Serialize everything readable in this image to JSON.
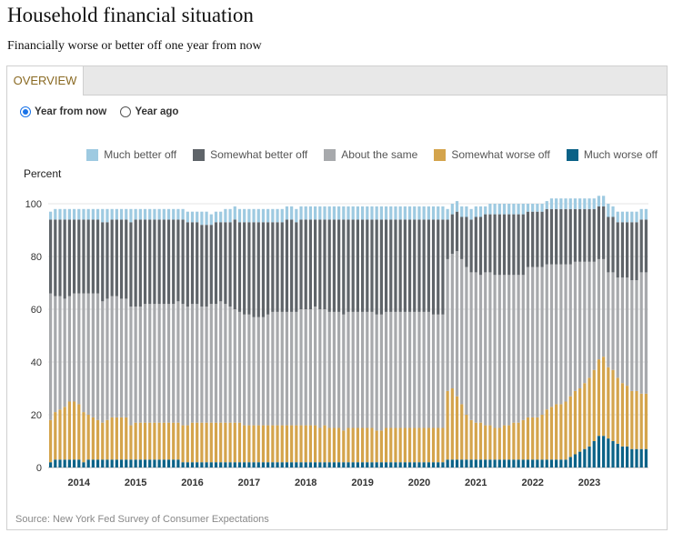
{
  "title": "Household financial situation",
  "subtitle": "Financially worse or better off one year from now",
  "tabs": [
    {
      "label": "OVERVIEW"
    }
  ],
  "radio": {
    "options": [
      {
        "label": "Year from now",
        "checked": true
      },
      {
        "label": "Year ago",
        "checked": false
      }
    ]
  },
  "source": "Source: New York Fed Survey of Consumer Expectations",
  "chart_data": {
    "type": "bar",
    "stacked": true,
    "ylabel": "Percent",
    "ylim": [
      0,
      100
    ],
    "yticks": [
      0,
      20,
      40,
      60,
      80,
      100
    ],
    "xticks": [
      "2014",
      "2015",
      "2016",
      "2017",
      "2018",
      "2019",
      "2020",
      "2021",
      "2022",
      "2023"
    ],
    "grid": true,
    "legend_position": "top-right",
    "series": [
      {
        "name": "Much better off",
        "color": "#9ecae1",
        "values": [
          3,
          4,
          4,
          4,
          4,
          4,
          4,
          4,
          4,
          4,
          4,
          5,
          5,
          4,
          4,
          4,
          4,
          5,
          4,
          4,
          4,
          4,
          4,
          4,
          4,
          4,
          4,
          4,
          4,
          4,
          4,
          4,
          5,
          5,
          4,
          4,
          4,
          5,
          5,
          5,
          5,
          5,
          5,
          5,
          5,
          5,
          5,
          5,
          5,
          5,
          5,
          5,
          5,
          5,
          5,
          5,
          5,
          5,
          5,
          5,
          5,
          5,
          5,
          5,
          5,
          5,
          5,
          5,
          5,
          5,
          5,
          5,
          5,
          5,
          5,
          5,
          5,
          5,
          5,
          5,
          5,
          5,
          5,
          5,
          4,
          4,
          4,
          4,
          4,
          4,
          4,
          4,
          3,
          4,
          4,
          4,
          4,
          4,
          4,
          4,
          4,
          3,
          3,
          3,
          3,
          3,
          4,
          4,
          4,
          4,
          4,
          4,
          4,
          4,
          4,
          4,
          4,
          4,
          5,
          4,
          4,
          4,
          4,
          4,
          4,
          4,
          4
        ]
      },
      {
        "name": "Somewhat better off",
        "color": "#5f6469",
        "values": [
          28,
          29,
          29,
          30,
          29,
          28,
          28,
          28,
          28,
          28,
          28,
          30,
          29,
          29,
          29,
          30,
          30,
          32,
          33,
          33,
          32,
          32,
          32,
          32,
          32,
          32,
          32,
          31,
          32,
          32,
          31,
          31,
          31,
          31,
          30,
          31,
          30,
          31,
          32,
          34,
          34,
          35,
          35,
          36,
          36,
          36,
          35,
          34,
          34,
          34,
          35,
          35,
          34,
          34,
          34,
          34,
          33,
          34,
          34,
          35,
          35,
          35,
          36,
          35,
          35,
          35,
          35,
          35,
          35,
          36,
          36,
          35,
          35,
          35,
          35,
          35,
          35,
          35,
          35,
          35,
          35,
          36,
          36,
          36,
          15,
          15,
          15,
          16,
          19,
          20,
          21,
          22,
          22,
          22,
          23,
          23,
          23,
          23,
          23,
          23,
          23,
          21,
          21,
          21,
          21,
          21,
          21,
          21,
          21,
          21,
          21,
          20,
          20,
          20,
          20,
          20,
          20,
          20,
          21,
          21,
          21,
          21,
          21,
          22,
          22,
          20,
          20
        ]
      },
      {
        "name": "About the same",
        "color": "#a7a9ac",
        "values": [
          48,
          44,
          43,
          41,
          40,
          41,
          42,
          45,
          46,
          47,
          48,
          46,
          46,
          46,
          46,
          45,
          45,
          45,
          44,
          44,
          45,
          45,
          45,
          45,
          45,
          45,
          45,
          46,
          46,
          45,
          45,
          45,
          44,
          44,
          45,
          45,
          46,
          45,
          44,
          43,
          42,
          42,
          42,
          41,
          41,
          41,
          42,
          43,
          43,
          43,
          43,
          43,
          43,
          44,
          44,
          44,
          45,
          45,
          44,
          44,
          44,
          44,
          44,
          44,
          44,
          44,
          44,
          44,
          44,
          44,
          44,
          44,
          44,
          44,
          44,
          44,
          44,
          44,
          44,
          44,
          44,
          43,
          43,
          43,
          50,
          51,
          55,
          55,
          56,
          56,
          57,
          56,
          58,
          58,
          58,
          58,
          57,
          57,
          56,
          56,
          55,
          57,
          57,
          57,
          56,
          55,
          54,
          53,
          53,
          52,
          50,
          49,
          48,
          46,
          44,
          41,
          38,
          37,
          36,
          37,
          38,
          40,
          41,
          42,
          42,
          46,
          46
        ]
      },
      {
        "name": "Somewhat worse off",
        "color": "#d4a44c",
        "values": [
          16,
          18,
          19,
          20,
          22,
          22,
          21,
          19,
          17,
          16,
          15,
          14,
          15,
          16,
          16,
          16,
          16,
          13,
          14,
          14,
          14,
          14,
          14,
          14,
          14,
          14,
          14,
          14,
          14,
          14,
          15,
          15,
          15,
          15,
          15,
          15,
          15,
          15,
          15,
          15,
          15,
          14,
          14,
          14,
          14,
          14,
          14,
          14,
          14,
          14,
          14,
          14,
          14,
          14,
          14,
          14,
          14,
          13,
          14,
          13,
          13,
          13,
          12,
          13,
          13,
          13,
          13,
          13,
          13,
          12,
          12,
          13,
          13,
          13,
          13,
          13,
          13,
          13,
          13,
          13,
          13,
          13,
          13,
          13,
          26,
          27,
          24,
          21,
          17,
          15,
          14,
          14,
          13,
          13,
          12,
          12,
          13,
          13,
          14,
          14,
          15,
          16,
          16,
          16,
          17,
          19,
          20,
          21,
          21,
          22,
          23,
          24,
          24,
          25,
          26,
          27,
          29,
          30,
          27,
          27,
          25,
          24,
          23,
          22,
          22,
          21,
          21
        ]
      },
      {
        "name": "Much worse off",
        "color": "#0b6287",
        "values": [
          2,
          3,
          3,
          3,
          3,
          3,
          3,
          2,
          3,
          3,
          3,
          3,
          3,
          3,
          3,
          3,
          3,
          3,
          3,
          3,
          3,
          3,
          3,
          3,
          3,
          3,
          3,
          3,
          2,
          2,
          2,
          2,
          2,
          2,
          2,
          2,
          2,
          2,
          2,
          2,
          2,
          2,
          2,
          2,
          2,
          2,
          2,
          2,
          2,
          2,
          2,
          2,
          2,
          2,
          2,
          2,
          2,
          2,
          2,
          2,
          2,
          2,
          2,
          2,
          2,
          2,
          2,
          2,
          2,
          2,
          2,
          2,
          2,
          2,
          2,
          2,
          2,
          2,
          2,
          2,
          2,
          2,
          2,
          2,
          3,
          3,
          3,
          3,
          3,
          3,
          3,
          3,
          3,
          3,
          3,
          3,
          3,
          3,
          3,
          3,
          3,
          3,
          3,
          3,
          3,
          3,
          3,
          3,
          3,
          3,
          4,
          5,
          6,
          7,
          8,
          10,
          12,
          12,
          11,
          10,
          9,
          8,
          8,
          7,
          7,
          7,
          7
        ]
      }
    ]
  }
}
